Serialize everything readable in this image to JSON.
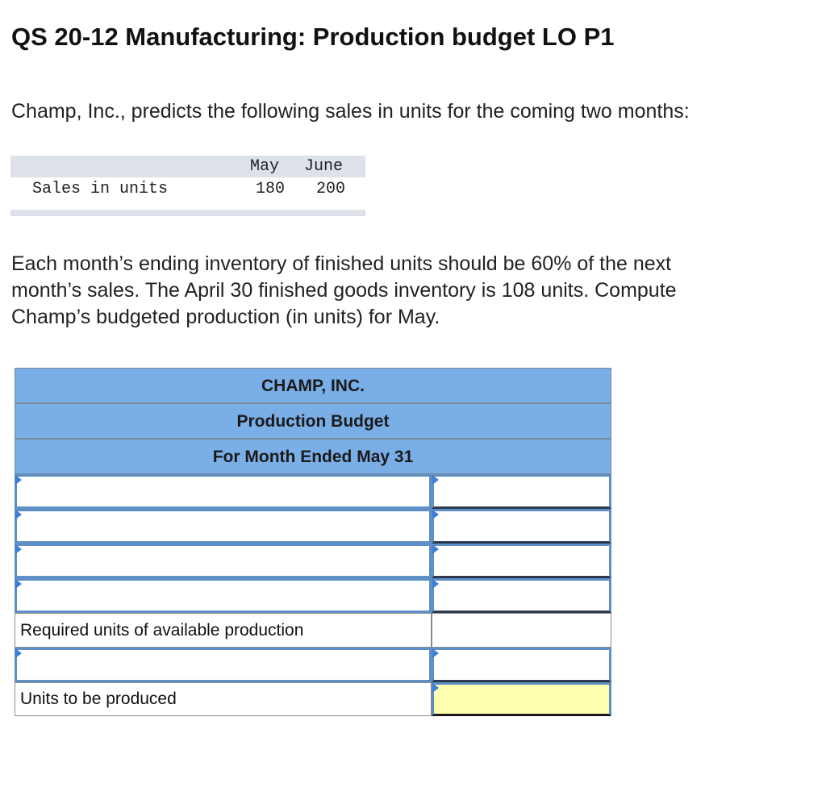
{
  "header": {
    "title": "QS 20-12 Manufacturing: Production budget LO P1"
  },
  "intro": "Champ, Inc., predicts the following sales in units for the coming two months:",
  "sales_table": {
    "columns": [
      "May",
      "June"
    ],
    "row_label": "Sales in units",
    "values": [
      "180",
      "200"
    ]
  },
  "paragraph": {
    "line1": "Each month’s ending inventory of finished units should be 60% of the next",
    "line2": "month’s sales. The April 30 finished goods inventory is 108 units. Compute",
    "line3": "Champ’s budgeted production (in units) for May."
  },
  "budget": {
    "company": "CHAMP, INC.",
    "report": "Production Budget",
    "period": "For Month Ended May 31",
    "required_label": "Required units of available production",
    "produced_label": "Units to be produced"
  },
  "colors": {
    "header_bg": "#7aaee6",
    "input_border": "#5e8fc5",
    "answer_bg": "#ffffb0"
  }
}
